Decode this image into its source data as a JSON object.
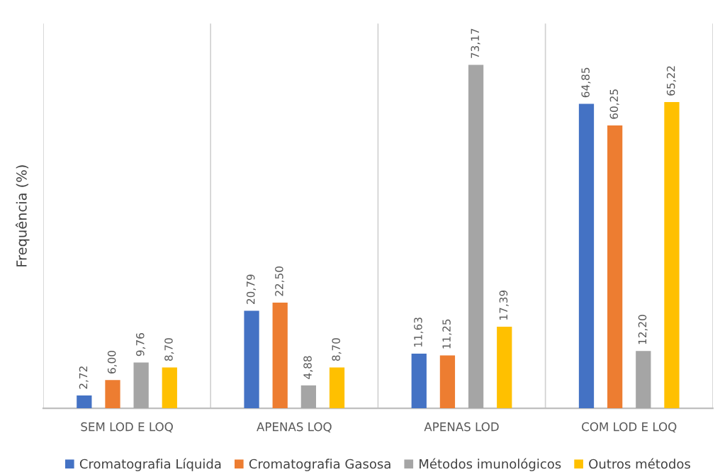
{
  "chart_data": {
    "type": "bar",
    "ylabel": "Frequência (%)",
    "categories": [
      "SEM LOD E LOQ",
      "APENAS LOQ",
      "APENAS LOD",
      "COM LOD E LOQ"
    ],
    "series": [
      {
        "name": "Cromatografia Líquida",
        "color": "#4472c4",
        "values": [
          2.72,
          20.79,
          11.63,
          64.85
        ],
        "value_labels": [
          "2,72",
          "20,79",
          "11,63",
          "64,85"
        ]
      },
      {
        "name": "Cromatografia Gasosa",
        "color": "#ed7d31",
        "values": [
          6.0,
          22.5,
          11.25,
          60.25
        ],
        "value_labels": [
          "6,00",
          "22,50",
          "11,25",
          "60,25"
        ]
      },
      {
        "name": "Métodos imunológicos",
        "color": "#a5a5a5",
        "values": [
          9.76,
          4.88,
          73.17,
          12.2
        ],
        "value_labels": [
          "9,76",
          "4,88",
          "73,17",
          "12,20"
        ]
      },
      {
        "name": "Outros métodos",
        "color": "#ffc000",
        "values": [
          8.7,
          8.7,
          17.39,
          65.22
        ],
        "value_labels": [
          "8,70",
          "8,70",
          "17,39",
          "65,22"
        ]
      }
    ],
    "grid": "x",
    "legend": "bottom",
    "tick_labels": "x"
  }
}
